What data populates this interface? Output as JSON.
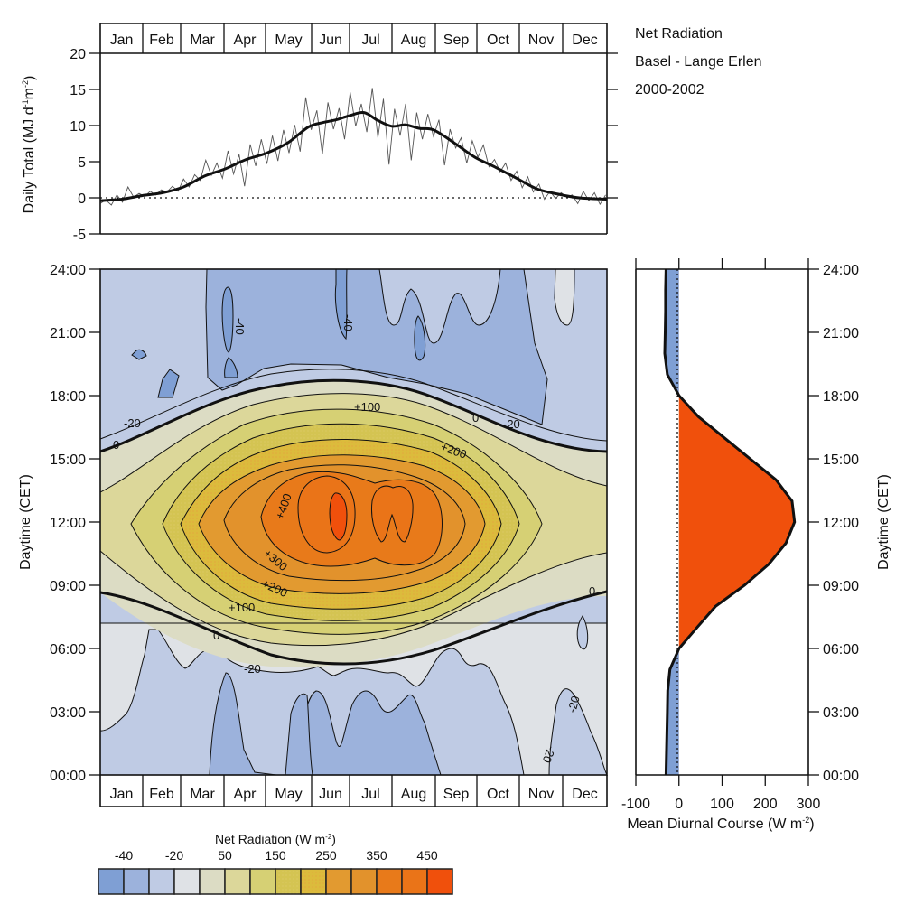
{
  "title": {
    "line1": "Net Radiation",
    "line2": "Basel - Lange Erlen",
    "line3": "2000-2002"
  },
  "months": [
    "Jan",
    "Feb",
    "Mar",
    "Apr",
    "May",
    "Jun",
    "Jul",
    "Aug",
    "Sep",
    "Oct",
    "Nov",
    "Dec"
  ],
  "colors": {
    "legend": [
      "#7f9fd4",
      "#9cb2dc",
      "#bfcbe4",
      "#dfe2e6",
      "#dcdcc4",
      "#dcd79a",
      "#d6d074",
      "#d4c452",
      "#e0b040",
      "#e29a30",
      "#e2922c",
      "#e87a1a",
      "#ea7418",
      "#f0500c"
    ],
    "diurnal_positive": "#f0500c",
    "diurnal_negative": "#7f9fd4"
  },
  "chart_data": [
    {
      "id": "daily-total",
      "type": "line",
      "title": "Net Radiation — Basel - Lange Erlen 2000-2002",
      "xlabel": "",
      "ylabel": "Daily Total (MJ d⁻¹m⁻²)",
      "ylabel_main": "Daily Total (MJ d",
      "ylabel_sup1": "-1",
      "ylabel_mid": "m",
      "ylabel_sup2": "-2",
      "ylabel_end": ")",
      "x_categories": [
        "Jan",
        "Feb",
        "Mar",
        "Apr",
        "May",
        "Jun",
        "Jul",
        "Aug",
        "Sep",
        "Oct",
        "Nov",
        "Dec"
      ],
      "xlim": [
        0,
        365
      ],
      "ylim": [
        -5,
        20
      ],
      "yticks": [
        -5,
        0,
        5,
        10,
        15,
        20
      ],
      "ytick_labels": [
        "-5",
        "0",
        "5",
        "10",
        "15",
        "20"
      ],
      "zero_line": "dotted",
      "series": [
        {
          "name": "smoothed mean",
          "style": "thick",
          "x": [
            0,
            15,
            30,
            45,
            60,
            75,
            90,
            105,
            120,
            135,
            150,
            160,
            170,
            180,
            190,
            200,
            210,
            220,
            230,
            240,
            255,
            270,
            285,
            300,
            315,
            330,
            345,
            365
          ],
          "y": [
            -0.4,
            -0.2,
            0.3,
            0.7,
            1.5,
            3.0,
            4.0,
            5.3,
            6.2,
            7.6,
            9.8,
            10.4,
            10.8,
            11.4,
            11.8,
            10.7,
            9.9,
            10.1,
            9.6,
            9.4,
            7.6,
            5.6,
            4.2,
            2.7,
            1.2,
            0.5,
            0.0,
            -0.2
          ]
        },
        {
          "name": "daily values",
          "style": "thin",
          "x": [
            0,
            4,
            8,
            12,
            16,
            20,
            24,
            28,
            32,
            36,
            40,
            44,
            48,
            52,
            56,
            60,
            64,
            68,
            72,
            76,
            80,
            84,
            88,
            92,
            96,
            100,
            104,
            108,
            112,
            116,
            120,
            124,
            128,
            132,
            136,
            140,
            144,
            148,
            152,
            156,
            160,
            164,
            168,
            172,
            176,
            180,
            184,
            188,
            192,
            196,
            200,
            204,
            208,
            212,
            216,
            220,
            224,
            228,
            232,
            236,
            240,
            244,
            248,
            252,
            256,
            260,
            264,
            268,
            272,
            276,
            280,
            284,
            288,
            292,
            296,
            300,
            304,
            308,
            312,
            316,
            320,
            324,
            328,
            332,
            336,
            340,
            344,
            348,
            352,
            356,
            360,
            364
          ],
          "y": [
            -0.8,
            -0.3,
            -1.0,
            0.4,
            -0.6,
            1.5,
            0.1,
            0.6,
            0.2,
            0.9,
            0.4,
            1.1,
            0.8,
            1.6,
            0.9,
            2.6,
            1.5,
            3.2,
            2.4,
            5.2,
            3.1,
            4.8,
            2.7,
            6.5,
            3.3,
            6.0,
            1.6,
            7.4,
            4.4,
            8.1,
            4.7,
            8.6,
            5.1,
            9.4,
            6.2,
            10.1,
            6.4,
            13.9,
            9.4,
            12.1,
            6.0,
            13.2,
            9.5,
            12.4,
            8.1,
            14.6,
            9.9,
            13.0,
            9.1,
            15.2,
            8.3,
            13.7,
            4.6,
            12.3,
            8.6,
            13.0,
            5.2,
            11.8,
            8.1,
            11.6,
            8.5,
            10.8,
            4.5,
            9.5,
            6.9,
            8.3,
            4.8,
            7.9,
            5.6,
            7.3,
            4.3,
            5.3,
            3.6,
            4.8,
            2.4,
            3.7,
            1.4,
            2.9,
            0.8,
            1.9,
            -0.2,
            0.9,
            -0.1,
            0.7,
            0.1,
            0.4,
            -0.8,
            0.9,
            -0.4,
            0.7,
            -0.9,
            0.4
          ]
        }
      ]
    },
    {
      "id": "diurnal-contour",
      "type": "heatmap",
      "title": "Net Radiation (W m⁻²)",
      "xlabel": "",
      "ylabel": "Daytime (CET)",
      "x_categories": [
        "Jan",
        "Feb",
        "Mar",
        "Apr",
        "May",
        "Jun",
        "Jul",
        "Aug",
        "Sep",
        "Oct",
        "Nov",
        "Dec"
      ],
      "ylim": [
        0,
        24
      ],
      "yticks": [
        0,
        3,
        6,
        9,
        12,
        15,
        18,
        21,
        24
      ],
      "ytick_labels": [
        "00:00",
        "03:00",
        "06:00",
        "09:00",
        "12:00",
        "15:00",
        "18:00",
        "21:00",
        "24:00"
      ],
      "contour_levels": [
        -40,
        -30,
        -20,
        -10,
        0,
        50,
        100,
        150,
        200,
        250,
        300,
        350,
        400,
        450
      ],
      "contour_labels": [
        "-40",
        "-40",
        "-20",
        "-20",
        "-20",
        "-20",
        "-20",
        "0",
        "0",
        "0",
        "0",
        "+100",
        "+100",
        "+100",
        "+200",
        "+200",
        "+300",
        "+400"
      ],
      "approx_values": {
        "note": "mean net radiation by month (rows) and hour (columns 0..23)",
        "hours": [
          0,
          1,
          2,
          3,
          4,
          5,
          6,
          7,
          8,
          9,
          10,
          11,
          12,
          13,
          14,
          15,
          16,
          17,
          18,
          19,
          20,
          21,
          22,
          23
        ],
        "rows": {
          "Jan": [
            -25,
            -25,
            -24,
            -24,
            -23,
            -23,
            -20,
            -15,
            -8,
            10,
            40,
            65,
            75,
            70,
            55,
            25,
            -2,
            -15,
            -22,
            -25,
            -26,
            -26,
            -26,
            -25
          ],
          "Mar": [
            -28,
            -28,
            -28,
            -27,
            -27,
            -26,
            -20,
            -5,
            40,
            110,
            180,
            230,
            250,
            240,
            200,
            130,
            60,
            5,
            -18,
            -28,
            -30,
            -30,
            -30,
            -29
          ],
          "Jun": [
            -32,
            -32,
            -31,
            -31,
            -30,
            -20,
            5,
            70,
            160,
            260,
            350,
            420,
            450,
            430,
            380,
            290,
            190,
            90,
            15,
            -25,
            -35,
            -36,
            -35,
            -34
          ],
          "Aug": [
            -30,
            -30,
            -30,
            -29,
            -28,
            -24,
            -5,
            45,
            130,
            230,
            320,
            390,
            410,
            400,
            350,
            260,
            160,
            60,
            0,
            -28,
            -33,
            -33,
            -32,
            -31
          ],
          "Oct": [
            -25,
            -25,
            -25,
            -24,
            -24,
            -23,
            -20,
            -10,
            25,
            90,
            150,
            190,
            200,
            185,
            140,
            75,
            10,
            -15,
            -23,
            -26,
            -26,
            -26,
            -26,
            -25
          ],
          "Dec": [
            -22,
            -22,
            -22,
            -22,
            -22,
            -21,
            -19,
            -14,
            -5,
            10,
            35,
            55,
            60,
            55,
            40,
            15,
            -5,
            -15,
            -20,
            -22,
            -22,
            -22,
            -22,
            -22
          ]
        }
      },
      "legend": {
        "title": "Net Radiation (W m⁻²)",
        "title_main": "Net Radiation (W m",
        "title_sup": "-2",
        "title_end": ")",
        "tick_labels": [
          "-40",
          "-20",
          "50",
          "150",
          "250",
          "350",
          "450"
        ],
        "placement": "bottom-left"
      }
    },
    {
      "id": "mean-diurnal-course",
      "type": "area",
      "title": "",
      "xlabel": "Mean Diurnal Course (W m⁻²)",
      "xlabel_main": "Mean Diurnal Course (W m",
      "xlabel_sup": "-2",
      "xlabel_end": ")",
      "ylabel": "Daytime (CET)",
      "xlim": [
        -100,
        300
      ],
      "xticks": [
        -100,
        0,
        100,
        200,
        300
      ],
      "xtick_labels": [
        "-100",
        "0",
        "100",
        "200",
        "300"
      ],
      "ylim": [
        0,
        24
      ],
      "yticks": [
        0,
        3,
        6,
        9,
        12,
        15,
        18,
        21,
        24
      ],
      "ytick_labels": [
        "00:00",
        "03:00",
        "06:00",
        "09:00",
        "12:00",
        "15:00",
        "18:00",
        "21:00",
        "24:00"
      ],
      "series": [
        {
          "name": "mean diurnal net radiation",
          "hour": [
            0,
            1,
            2,
            3,
            4,
            5,
            6,
            7,
            8,
            9,
            10,
            11,
            12,
            13,
            14,
            15,
            16,
            17,
            18,
            19,
            20,
            21,
            22,
            23,
            24
          ],
          "value": [
            -30,
            -29,
            -28,
            -27,
            -26,
            -21,
            0,
            42,
            85,
            152,
            208,
            248,
            268,
            262,
            225,
            165,
            105,
            45,
            0,
            -27,
            -33,
            -32,
            -31,
            -31,
            -30
          ]
        }
      ]
    }
  ]
}
